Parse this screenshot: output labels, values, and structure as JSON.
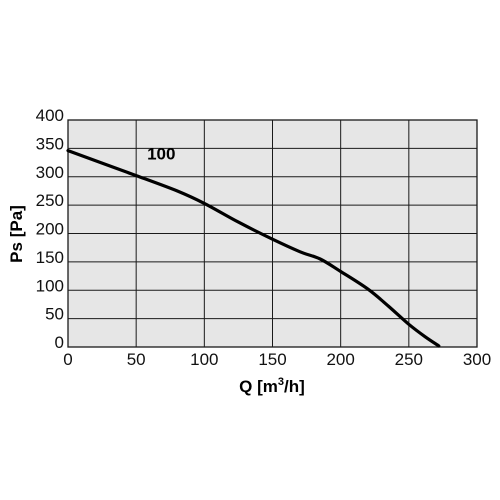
{
  "chart_data": {
    "type": "line",
    "title": "",
    "xlabel_main": "Q [m",
    "xlabel_sup": "3",
    "xlabel_tail": "/h]",
    "ylabel": "Ps [Pa]",
    "xlim": [
      0,
      300
    ],
    "ylim": [
      0,
      400
    ],
    "xticks": [
      0,
      50,
      100,
      150,
      200,
      250,
      300
    ],
    "yticks": [
      0,
      50,
      100,
      150,
      200,
      250,
      300,
      350,
      400
    ],
    "grid": true,
    "plot_background": "#e6e6e6",
    "grid_color": "#1a1a1a",
    "line_color": "#000000",
    "series": [
      {
        "label": "100",
        "label_at": [
          58,
          330
        ],
        "x": [
          0,
          25,
          50,
          80,
          100,
          125,
          150,
          170,
          185,
          200,
          220,
          235,
          250,
          262,
          272
        ],
        "y": [
          346,
          324,
          302,
          275,
          253,
          220,
          190,
          168,
          155,
          133,
          102,
          72,
          40,
          18,
          2
        ]
      }
    ]
  }
}
